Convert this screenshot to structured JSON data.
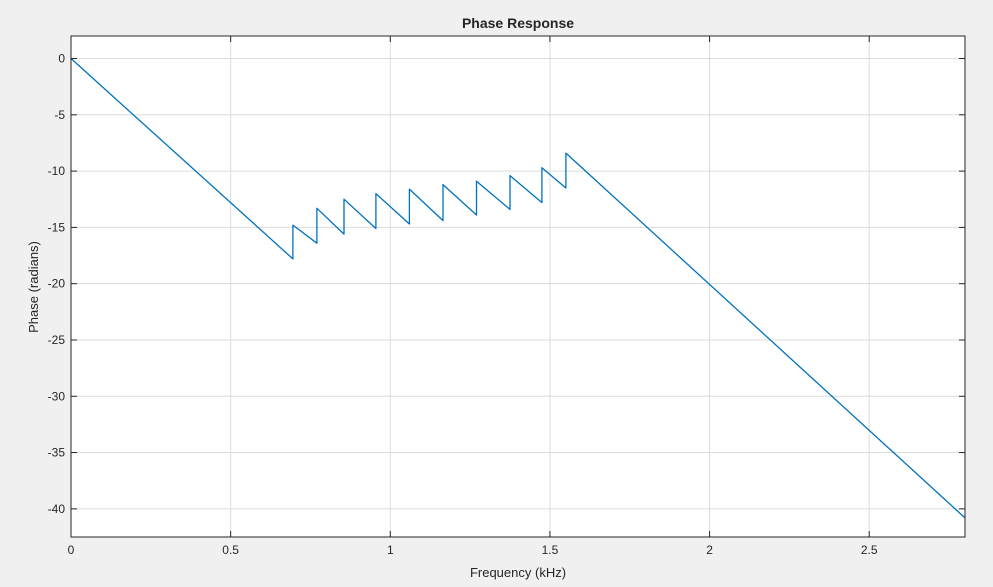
{
  "chart_data": {
    "type": "line",
    "title": "Phase Response",
    "xlabel": "Frequency (kHz)",
    "ylabel": "Phase (radians)",
    "xlim": [
      0,
      2.8
    ],
    "ylim": [
      -42.5,
      2
    ],
    "grid": true,
    "x_ticks": [
      0,
      0.5,
      1,
      1.5,
      2,
      2.5
    ],
    "x_tick_labels": [
      "0",
      "0.5",
      "1",
      "1.5",
      "2",
      "2.5"
    ],
    "y_ticks": [
      0,
      -5,
      -10,
      -15,
      -20,
      -25,
      -30,
      -35,
      -40
    ],
    "y_tick_labels": [
      "0",
      "-5",
      "-10",
      "-15",
      "-20",
      "-25",
      "-30",
      "-35",
      "-40"
    ],
    "series": [
      {
        "color": "#0072bd",
        "x": [
          0,
          0.695,
          0.695,
          0.77,
          0.77,
          0.855,
          0.855,
          0.955,
          0.955,
          1.06,
          1.06,
          1.165,
          1.165,
          1.27,
          1.27,
          1.375,
          1.375,
          1.475,
          1.475,
          1.55,
          1.55,
          2.8
        ],
        "y": [
          0,
          -17.8,
          -14.8,
          -16.4,
          -13.3,
          -15.6,
          -12.5,
          -15.1,
          -12.0,
          -14.7,
          -11.6,
          -14.4,
          -11.2,
          -13.9,
          -10.9,
          -13.4,
          -10.4,
          -12.8,
          -9.7,
          -11.5,
          -8.4,
          -40.8
        ]
      }
    ]
  }
}
